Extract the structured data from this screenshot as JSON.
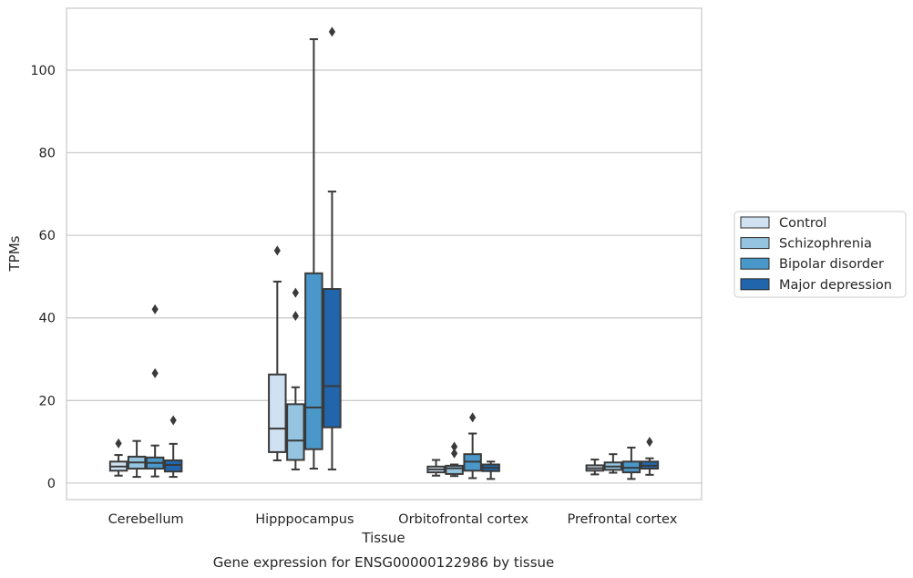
{
  "chart_data": {
    "type": "box",
    "title": "",
    "caption": "Gene expression for ENSG00000122986 by tissue",
    "xlabel": "Tissue",
    "ylabel": "TPMs",
    "ylim": [
      -4,
      115
    ],
    "yticks": [
      0,
      20,
      40,
      60,
      80,
      100
    ],
    "grid": "horizontal",
    "legend_position": "right",
    "categories": [
      "Cerebellum",
      "Hipppocampus",
      "Orbitofrontal cortex",
      "Prefrontal cortex"
    ],
    "series": [
      {
        "name": "Control",
        "color": "#d0e1f2",
        "boxes": [
          {
            "whislo": 1.8,
            "q1": 3.0,
            "med": 4.0,
            "q3": 5.2,
            "whishi": 6.8,
            "fliers": [
              9.6
            ]
          },
          {
            "whislo": 5.5,
            "q1": 7.5,
            "med": 13.2,
            "q3": 26.3,
            "whishi": 48.8,
            "fliers": [
              56.3
            ]
          },
          {
            "whislo": 1.8,
            "q1": 2.6,
            "med": 3.3,
            "q3": 4.0,
            "whishi": 5.6,
            "fliers": []
          },
          {
            "whislo": 2.1,
            "q1": 3.0,
            "med": 3.6,
            "q3": 4.3,
            "whishi": 5.7,
            "fliers": []
          }
        ]
      },
      {
        "name": "Schizophrenia",
        "color": "#94c4df",
        "boxes": [
          {
            "whislo": 1.5,
            "q1": 3.5,
            "med": 5.0,
            "q3": 6.4,
            "whishi": 10.2,
            "fliers": []
          },
          {
            "whislo": 3.3,
            "q1": 5.6,
            "med": 10.3,
            "q3": 19.1,
            "whishi": 23.2,
            "fliers": [
              40.5,
              46.1
            ]
          },
          {
            "whislo": 1.7,
            "q1": 2.2,
            "med": 3.6,
            "q3": 4.2,
            "whishi": 4.5,
            "fliers": [
              7.2,
              8.8
            ]
          },
          {
            "whislo": 2.5,
            "q1": 3.2,
            "med": 4.0,
            "q3": 5.0,
            "whishi": 7.0,
            "fliers": []
          }
        ]
      },
      {
        "name": "Bipolar disorder",
        "color": "#4a98c9",
        "boxes": [
          {
            "whislo": 1.6,
            "q1": 3.5,
            "med": 4.9,
            "q3": 6.2,
            "whishi": 9.1,
            "fliers": [
              26.6,
              42.1
            ]
          },
          {
            "whislo": 3.5,
            "q1": 8.2,
            "med": 18.3,
            "q3": 50.8,
            "whishi": 107.5,
            "fliers": []
          },
          {
            "whislo": 1.2,
            "q1": 3.0,
            "med": 5.2,
            "q3": 7.0,
            "whishi": 12.0,
            "fliers": [
              15.9
            ]
          },
          {
            "whislo": 1.0,
            "q1": 2.6,
            "med": 3.7,
            "q3": 5.2,
            "whishi": 8.6,
            "fliers": []
          }
        ]
      },
      {
        "name": "Major depression",
        "color": "#2166ac",
        "boxes": [
          {
            "whislo": 1.5,
            "q1": 2.8,
            "med": 4.4,
            "q3": 5.5,
            "whishi": 9.5,
            "fliers": [
              15.2
            ]
          },
          {
            "whislo": 3.3,
            "q1": 13.5,
            "med": 23.5,
            "q3": 47.0,
            "whishi": 70.6,
            "fliers": [
              109.3
            ]
          },
          {
            "whislo": 1.0,
            "q1": 2.9,
            "med": 3.7,
            "q3": 4.5,
            "whishi": 5.2,
            "fliers": []
          },
          {
            "whislo": 2.0,
            "q1": 3.5,
            "med": 4.2,
            "q3": 5.2,
            "whishi": 6.0,
            "fliers": [
              10.0
            ]
          }
        ]
      }
    ]
  }
}
